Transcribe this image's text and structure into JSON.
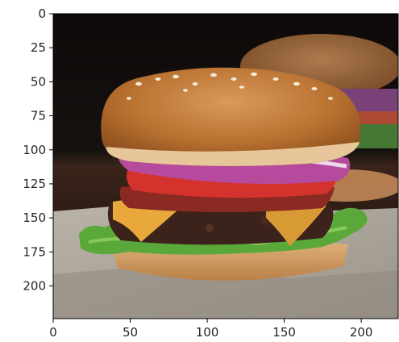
{
  "chart_data": {
    "type": "image",
    "subject": "hamburger",
    "xlim": [
      0,
      224
    ],
    "ylim": [
      224,
      0
    ],
    "x_ticks": [
      0,
      50,
      100,
      150,
      200
    ],
    "y_ticks": [
      0,
      25,
      50,
      75,
      100,
      125,
      150,
      175,
      200
    ],
    "grid": false,
    "axis_color": "#000000",
    "tick_label_color": "#262626"
  }
}
